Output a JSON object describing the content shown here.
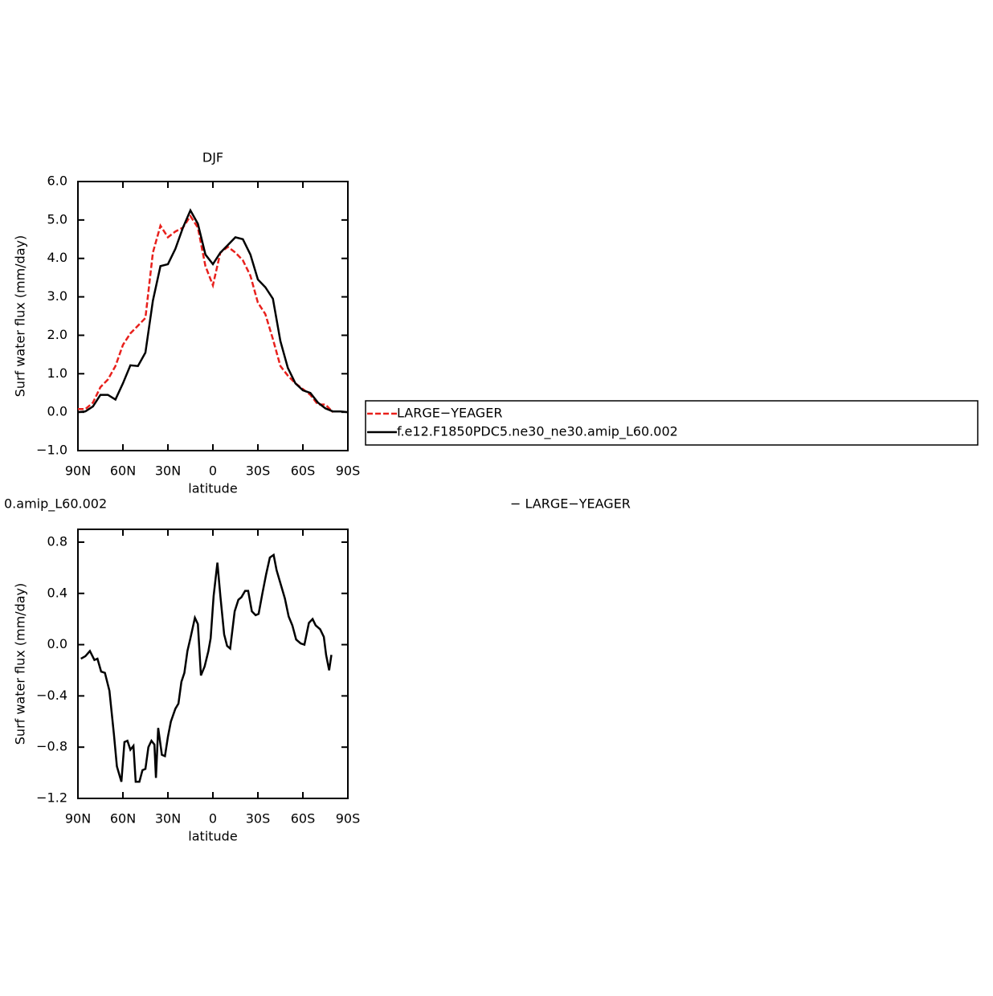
{
  "chart_data": [
    {
      "type": "line",
      "title": "DJF",
      "xlabel": "latitude",
      "ylabel": "Surf water flux (mm/day)",
      "x": [
        90,
        85,
        80,
        75,
        70,
        65,
        60,
        55,
        50,
        45,
        40,
        35,
        30,
        25,
        20,
        15,
        10,
        5,
        0,
        -5,
        -10,
        -15,
        -20,
        -25,
        -30,
        -35,
        -40,
        -45,
        -50,
        -55,
        -60,
        -65,
        -70,
        -75,
        -80,
        -85,
        -90
      ],
      "series": [
        {
          "name": "LARGE−YEAGER",
          "color": "#e8201c",
          "dash": "dashed",
          "values": [
            0.08,
            0.08,
            0.25,
            0.65,
            0.85,
            1.2,
            1.75,
            2.05,
            2.25,
            2.45,
            4.15,
            4.85,
            4.55,
            4.7,
            4.8,
            5.1,
            4.8,
            3.8,
            3.3,
            4.15,
            4.3,
            4.15,
            3.95,
            3.55,
            2.85,
            2.55,
            1.9,
            1.2,
            0.95,
            0.75,
            0.6,
            0.45,
            0.2,
            0.2,
            0.0,
            null,
            null
          ]
        },
        {
          "name": "f.e12.F1850PDC5.ne30_ne30.amip_L60.002",
          "color": "#000000",
          "dash": "solid",
          "values": [
            0.0,
            0.02,
            0.15,
            0.45,
            0.45,
            0.33,
            0.75,
            1.22,
            1.2,
            1.55,
            2.9,
            3.8,
            3.85,
            4.25,
            4.8,
            5.25,
            4.9,
            4.1,
            3.85,
            4.15,
            4.35,
            4.55,
            4.5,
            4.1,
            3.45,
            3.25,
            2.95,
            1.85,
            1.15,
            0.75,
            0.57,
            0.5,
            0.25,
            0.1,
            0.02,
            0.02,
            0.0
          ]
        }
      ],
      "xlim": [
        90,
        -90
      ],
      "xticks": [
        {
          "value": 90,
          "label": "90N"
        },
        {
          "value": 60,
          "label": "60N"
        },
        {
          "value": 30,
          "label": "30N"
        },
        0,
        {
          "value": -30,
          "label": "30S"
        },
        {
          "value": -60,
          "label": "60S"
        },
        {
          "value": -90,
          "label": "90S"
        }
      ],
      "ylim": [
        -1,
        6
      ],
      "yticks": [
        {
          "value": -1,
          "label": "−1.0"
        },
        {
          "value": 0,
          "label": "0.0"
        },
        {
          "value": 1,
          "label": "1.0"
        },
        {
          "value": 2,
          "label": "2.0"
        },
        {
          "value": 3,
          "label": "3.0"
        },
        {
          "value": 4,
          "label": "4.0"
        },
        {
          "value": 5,
          "label": "5.0"
        },
        {
          "value": 6,
          "label": "6.0"
        }
      ],
      "legend": "right"
    },
    {
      "type": "line",
      "title_parts": [
        "0.amip_L60.002",
        "− LARGE−YEAGER"
      ],
      "xlabel": "latitude",
      "ylabel": "Surf water flux (mm/day)",
      "x": [
        88,
        85,
        82,
        79,
        77,
        74.5,
        72,
        69,
        66,
        64,
        61,
        59,
        57,
        55,
        53,
        51.5,
        49,
        47,
        45,
        43,
        41,
        39,
        38,
        36.5,
        34,
        32,
        30,
        28,
        25,
        23,
        21,
        19,
        17,
        15,
        12,
        10,
        8,
        5.5,
        3,
        1.5,
        -0.5,
        -3,
        -5,
        -7.5,
        -9.5,
        -11.5,
        -14.5,
        -17,
        -19,
        -21.5,
        -23.5,
        -26,
        -28.5,
        -30.5,
        -33,
        -35.5,
        -38,
        -40.5,
        -42.5,
        -45,
        -48,
        -50.5,
        -53,
        -55.5,
        -58.5,
        -61,
        -64,
        -66.5,
        -68.5,
        -71.5,
        -74,
        -75.5,
        -77.5,
        -79
      ],
      "series": [
        {
          "color": "#000000",
          "dash": "solid",
          "values": [
            -0.11,
            -0.09,
            -0.05,
            -0.12,
            -0.11,
            -0.21,
            -0.22,
            -0.36,
            -0.7,
            -0.95,
            -1.07,
            -0.76,
            -0.75,
            -0.82,
            -0.79,
            -1.07,
            -1.07,
            -0.98,
            -0.97,
            -0.8,
            -0.75,
            -0.78,
            -1.04,
            -0.65,
            -0.86,
            -0.87,
            -0.72,
            -0.6,
            -0.5,
            -0.46,
            -0.29,
            -0.22,
            -0.05,
            0.05,
            0.21,
            0.16,
            -0.24,
            -0.17,
            -0.05,
            0.05,
            0.38,
            0.64,
            0.38,
            0.08,
            -0.01,
            -0.03,
            0.26,
            0.35,
            0.37,
            0.42,
            0.42,
            0.26,
            0.23,
            0.24,
            0.4,
            0.55,
            0.68,
            0.7,
            0.58,
            0.48,
            0.36,
            0.22,
            0.15,
            0.04,
            0.01,
            0.0,
            0.17,
            0.2,
            0.15,
            0.12,
            0.06,
            -0.08,
            -0.2,
            -0.08
          ]
        }
      ],
      "xlim": [
        90,
        -90
      ],
      "xticks": [
        {
          "value": 90,
          "label": "90N"
        },
        {
          "value": 60,
          "label": "60N"
        },
        {
          "value": 30,
          "label": "30N"
        },
        0,
        {
          "value": -30,
          "label": "30S"
        },
        {
          "value": -60,
          "label": "60S"
        },
        {
          "value": -90,
          "label": "90S"
        }
      ],
      "ylim": [
        -1.2,
        0.9
      ],
      "yticks": [
        {
          "value": -1.2,
          "label": "−1.2"
        },
        {
          "value": -0.8,
          "label": "−0.8"
        },
        {
          "value": -0.4,
          "label": "−0.4"
        },
        {
          "value": 0,
          "label": "0.0"
        },
        {
          "value": 0.4,
          "label": "0.4"
        },
        {
          "value": 0.8,
          "label": "0.8"
        }
      ]
    }
  ]
}
